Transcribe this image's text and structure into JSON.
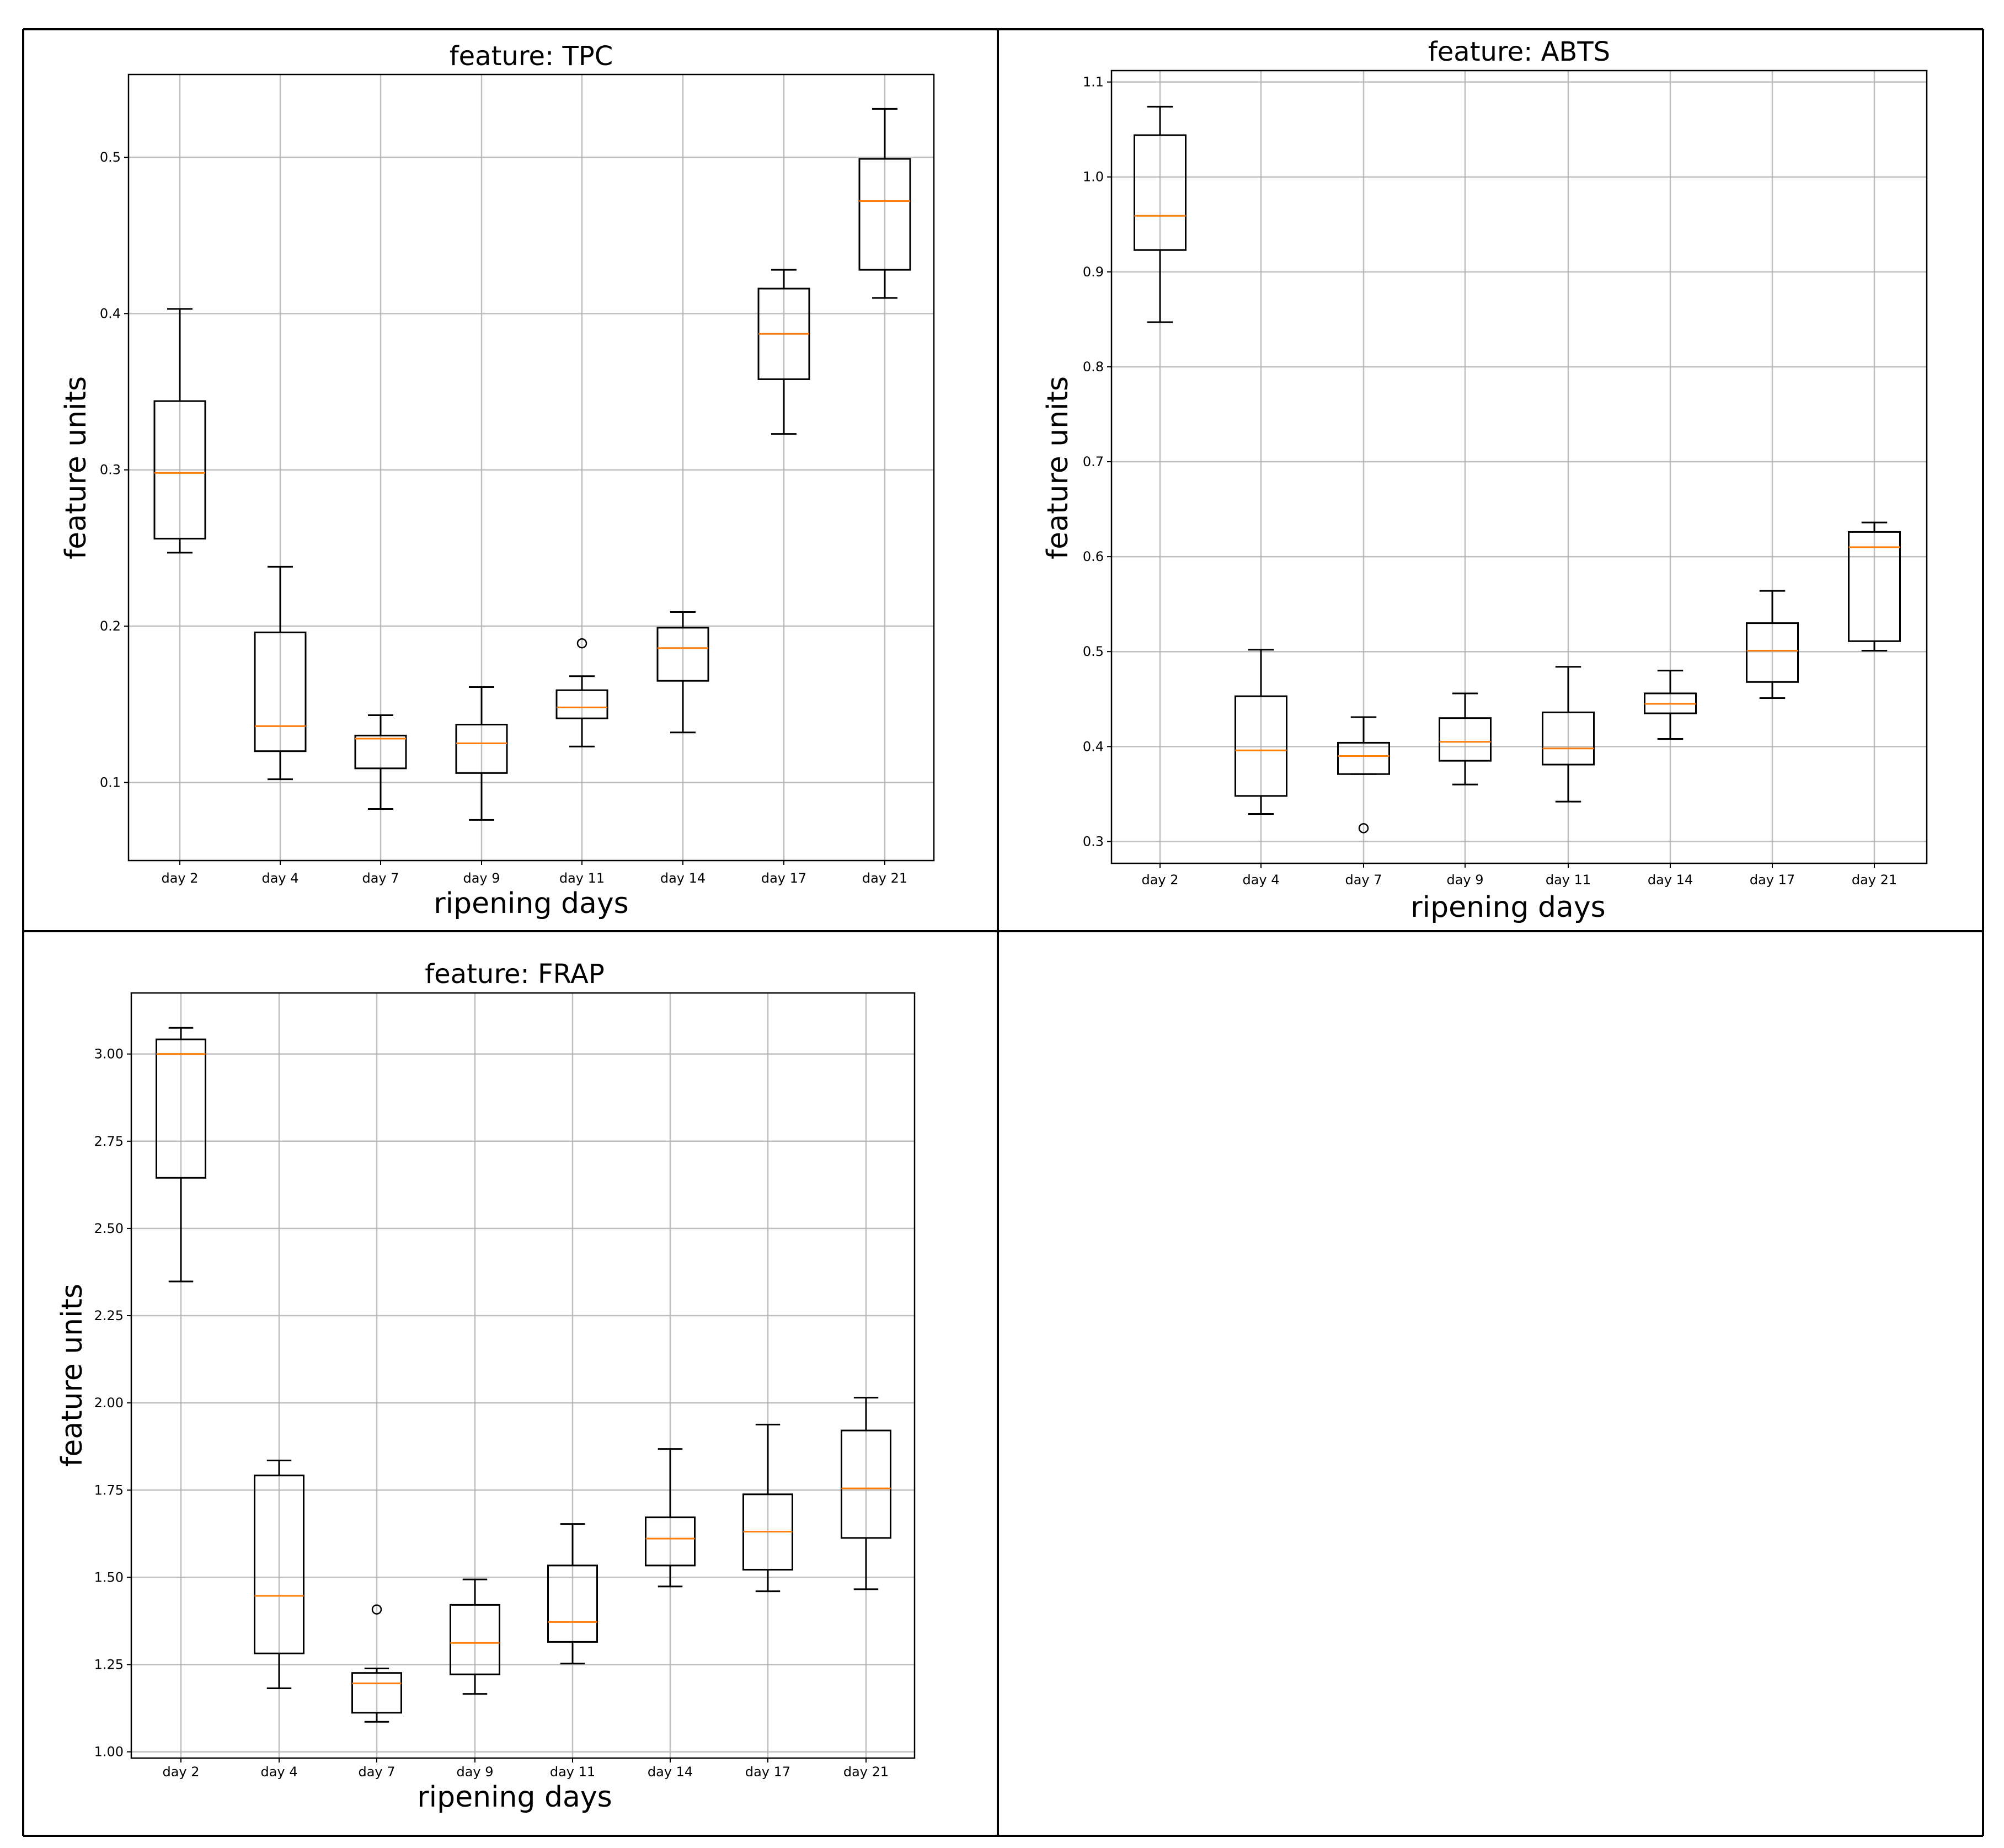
{
  "figure": {
    "layout": "2x2 grid",
    "empty_panel": "bottom-right"
  },
  "chart_data": [
    {
      "type": "boxplot",
      "title": "feature: TPC",
      "xlabel": "ripening days",
      "ylabel": "feature units",
      "grid": true,
      "categories": [
        "day 2",
        "day 4",
        "day 7",
        "day 9",
        "day 11",
        "day 14",
        "day 17",
        "day 21"
      ],
      "ylim": [
        0.05,
        0.553
      ],
      "yticks": [
        0.1,
        0.2,
        0.3,
        0.4,
        0.5
      ],
      "ytick_labels": [
        "0.1",
        "0.2",
        "0.3",
        "0.4",
        "0.5"
      ],
      "boxes": [
        {
          "whisker_low": 0.247,
          "q1": 0.256,
          "median": 0.298,
          "q3": 0.344,
          "whisker_high": 0.403,
          "fliers": []
        },
        {
          "whisker_low": 0.102,
          "q1": 0.12,
          "median": 0.136,
          "q3": 0.196,
          "whisker_high": 0.238,
          "fliers": []
        },
        {
          "whisker_low": 0.083,
          "q1": 0.109,
          "median": 0.128,
          "q3": 0.13,
          "whisker_high": 0.143,
          "fliers": []
        },
        {
          "whisker_low": 0.076,
          "q1": 0.106,
          "median": 0.125,
          "q3": 0.137,
          "whisker_high": 0.161,
          "fliers": []
        },
        {
          "whisker_low": 0.123,
          "q1": 0.141,
          "median": 0.148,
          "q3": 0.159,
          "whisker_high": 0.168,
          "fliers": [
            0.189
          ]
        },
        {
          "whisker_low": 0.132,
          "q1": 0.165,
          "median": 0.186,
          "q3": 0.199,
          "whisker_high": 0.209,
          "fliers": []
        },
        {
          "whisker_low": 0.323,
          "q1": 0.358,
          "median": 0.387,
          "q3": 0.416,
          "whisker_high": 0.428,
          "fliers": []
        },
        {
          "whisker_low": 0.41,
          "q1": 0.428,
          "median": 0.472,
          "q3": 0.499,
          "whisker_high": 0.531,
          "fliers": []
        }
      ]
    },
    {
      "type": "boxplot",
      "title": "feature: ABTS",
      "xlabel": "ripening days",
      "ylabel": "feature units",
      "grid": true,
      "categories": [
        "day 2",
        "day 4",
        "day 7",
        "day 9",
        "day 11",
        "day 14",
        "day 17",
        "day 21"
      ],
      "ylim": [
        0.277,
        1.112
      ],
      "yticks": [
        0.3,
        0.4,
        0.5,
        0.6,
        0.7,
        0.8,
        0.9,
        1.0,
        1.1
      ],
      "ytick_labels": [
        "0.3",
        "0.4",
        "0.5",
        "0.6",
        "0.7",
        "0.8",
        "0.9",
        "1.0",
        "1.1"
      ],
      "boxes": [
        {
          "whisker_low": 0.847,
          "q1": 0.923,
          "median": 0.959,
          "q3": 1.044,
          "whisker_high": 1.074,
          "fliers": []
        },
        {
          "whisker_low": 0.329,
          "q1": 0.348,
          "median": 0.396,
          "q3": 0.453,
          "whisker_high": 0.502,
          "fliers": []
        },
        {
          "whisker_low": 0.371,
          "q1": 0.371,
          "median": 0.39,
          "q3": 0.404,
          "whisker_high": 0.431,
          "fliers": [
            0.314
          ]
        },
        {
          "whisker_low": 0.36,
          "q1": 0.385,
          "median": 0.405,
          "q3": 0.43,
          "whisker_high": 0.456,
          "fliers": []
        },
        {
          "whisker_low": 0.342,
          "q1": 0.381,
          "median": 0.398,
          "q3": 0.436,
          "whisker_high": 0.484,
          "fliers": []
        },
        {
          "whisker_low": 0.408,
          "q1": 0.435,
          "median": 0.445,
          "q3": 0.456,
          "whisker_high": 0.48,
          "fliers": []
        },
        {
          "whisker_low": 0.451,
          "q1": 0.468,
          "median": 0.501,
          "q3": 0.53,
          "whisker_high": 0.564,
          "fliers": []
        },
        {
          "whisker_low": 0.501,
          "q1": 0.511,
          "median": 0.61,
          "q3": 0.626,
          "whisker_high": 0.636,
          "fliers": []
        }
      ]
    },
    {
      "type": "boxplot",
      "title": "feature: FRAP",
      "xlabel": "ripening days",
      "ylabel": "feature units",
      "grid": true,
      "categories": [
        "day 2",
        "day 4",
        "day 7",
        "day 9",
        "day 11",
        "day 14",
        "day 17",
        "day 21"
      ],
      "ylim": [
        0.982,
        3.175
      ],
      "yticks": [
        1.0,
        1.25,
        1.5,
        1.75,
        2.0,
        2.25,
        2.5,
        2.75,
        3.0
      ],
      "ytick_labels": [
        "1.00",
        "1.25",
        "1.50",
        "1.75",
        "2.00",
        "2.25",
        "2.50",
        "2.75",
        "3.00"
      ],
      "boxes": [
        {
          "whisker_low": 2.348,
          "q1": 2.645,
          "median": 3.0,
          "q3": 3.042,
          "whisker_high": 3.075,
          "fliers": []
        },
        {
          "whisker_low": 1.182,
          "q1": 1.282,
          "median": 1.447,
          "q3": 1.792,
          "whisker_high": 1.835,
          "fliers": []
        },
        {
          "whisker_low": 1.086,
          "q1": 1.112,
          "median": 1.196,
          "q3": 1.226,
          "whisker_high": 1.239,
          "fliers": [
            1.408
          ]
        },
        {
          "whisker_low": 1.166,
          "q1": 1.222,
          "median": 1.312,
          "q3": 1.421,
          "whisker_high": 1.494,
          "fliers": []
        },
        {
          "whisker_low": 1.253,
          "q1": 1.315,
          "median": 1.372,
          "q3": 1.534,
          "whisker_high": 1.653,
          "fliers": []
        },
        {
          "whisker_low": 1.474,
          "q1": 1.534,
          "median": 1.611,
          "q3": 1.672,
          "whisker_high": 1.868,
          "fliers": []
        },
        {
          "whisker_low": 1.46,
          "q1": 1.522,
          "median": 1.631,
          "q3": 1.738,
          "whisker_high": 1.938,
          "fliers": []
        },
        {
          "whisker_low": 1.466,
          "q1": 1.613,
          "median": 1.755,
          "q3": 1.921,
          "whisker_high": 2.015,
          "fliers": []
        }
      ]
    }
  ]
}
